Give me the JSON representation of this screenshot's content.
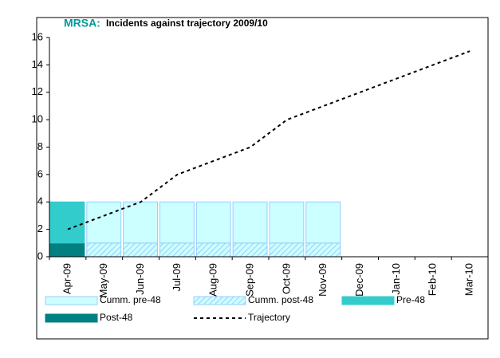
{
  "chart_data": {
    "type": "bar",
    "title_prefix": "MRSA:",
    "title": "Incidents against trajectory 2009/10",
    "categories": [
      "Apr-09",
      "May-09",
      "Jun-09",
      "Jul-09",
      "Aug-09",
      "Sep-09",
      "Oct-09",
      "Nov-09",
      "Dec-09",
      "Jan-10",
      "Feb-10",
      "Mar-10"
    ],
    "series": [
      {
        "name": "Cumm. pre-48",
        "type": "bar",
        "color": "#ccffff",
        "stroke": "#99ccff",
        "values": [
          null,
          3,
          3,
          3,
          3,
          3,
          3,
          3,
          null,
          null,
          null,
          null
        ]
      },
      {
        "name": "Cumm. post-48",
        "type": "bar",
        "color": "#ccffff",
        "stroke": "#99ccff",
        "hatched": true,
        "values": [
          null,
          1,
          1,
          1,
          1,
          1,
          1,
          1,
          null,
          null,
          null,
          null
        ]
      },
      {
        "name": "Pre-48",
        "type": "bar",
        "color": "#33cccc",
        "stroke": "#33cccc",
        "values": [
          3,
          null,
          null,
          null,
          null,
          null,
          null,
          null,
          null,
          null,
          null,
          null
        ]
      },
      {
        "name": "Post-48",
        "type": "bar",
        "color": "#008080",
        "stroke": "#008080",
        "values": [
          1,
          null,
          null,
          null,
          null,
          null,
          null,
          null,
          null,
          null,
          null,
          null
        ]
      },
      {
        "name": "Trajectory",
        "type": "line",
        "color": "#000000",
        "dashed": true,
        "values": [
          2,
          3,
          4,
          6,
          7,
          8,
          10,
          11,
          12,
          13,
          14,
          15
        ]
      }
    ],
    "ylim": [
      0,
      16
    ],
    "yticks": [
      0,
      2,
      4,
      6,
      8,
      10,
      12,
      14,
      16
    ],
    "grid": false,
    "legend": "bottom"
  }
}
